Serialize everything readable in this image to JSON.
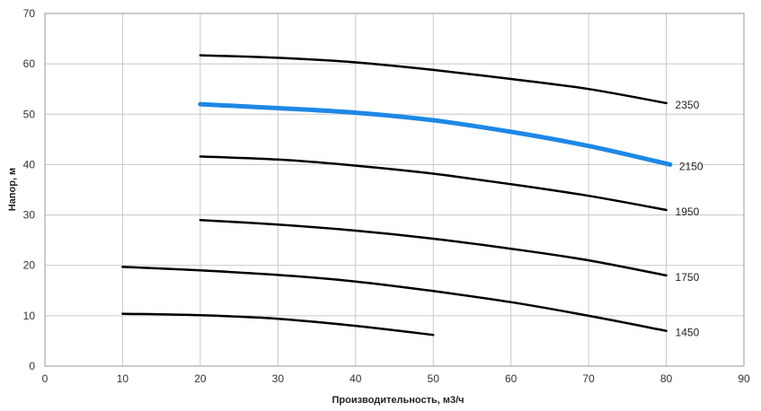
{
  "chart_data": {
    "type": "line",
    "xlabel": "Производительность,  м3/ч",
    "ylabel": "Напор, м",
    "xlim": [
      0,
      90
    ],
    "ylim": [
      0,
      70
    ],
    "x_ticks": [
      "0",
      "10",
      "20",
      "30",
      "40",
      "50",
      "60",
      "70",
      "80",
      "90"
    ],
    "y_ticks": [
      "0",
      "10",
      "20",
      "30",
      "40",
      "50",
      "60",
      "70"
    ],
    "grid": true,
    "colors": {
      "default": "#000000",
      "highlight": "#1e88e5",
      "grid": "#c8c8c8"
    },
    "series": [
      {
        "name": "2350",
        "highlight": false,
        "x": [
          20,
          30,
          40,
          50,
          60,
          70,
          80
        ],
        "y": [
          61.7,
          61.2,
          60.3,
          58.8,
          57.0,
          55.0,
          52.2
        ]
      },
      {
        "name": "2150",
        "highlight": true,
        "x": [
          20,
          30,
          40,
          50,
          60,
          70,
          80.5
        ],
        "y": [
          52.0,
          51.2,
          50.3,
          48.8,
          46.5,
          43.7,
          40.0
        ]
      },
      {
        "name": "1950",
        "highlight": false,
        "x": [
          20,
          30,
          40,
          50,
          60,
          70,
          80
        ],
        "y": [
          41.6,
          41.0,
          39.8,
          38.2,
          36.1,
          33.8,
          31.0
        ]
      },
      {
        "name": "1750",
        "highlight": false,
        "x": [
          20,
          30,
          40,
          50,
          60,
          70,
          80
        ],
        "y": [
          29.0,
          28.1,
          26.9,
          25.3,
          23.3,
          21.0,
          18.0
        ]
      },
      {
        "name": "1450",
        "highlight": false,
        "x": [
          10,
          20,
          30,
          40,
          50,
          60,
          70,
          80
        ],
        "y": [
          19.7,
          19.0,
          18.1,
          16.8,
          14.9,
          12.7,
          10.0,
          7.0
        ]
      },
      {
        "name": "",
        "highlight": false,
        "x": [
          10,
          20,
          30,
          40,
          50
        ],
        "y": [
          10.4,
          10.1,
          9.4,
          8.0,
          6.2
        ]
      }
    ]
  }
}
